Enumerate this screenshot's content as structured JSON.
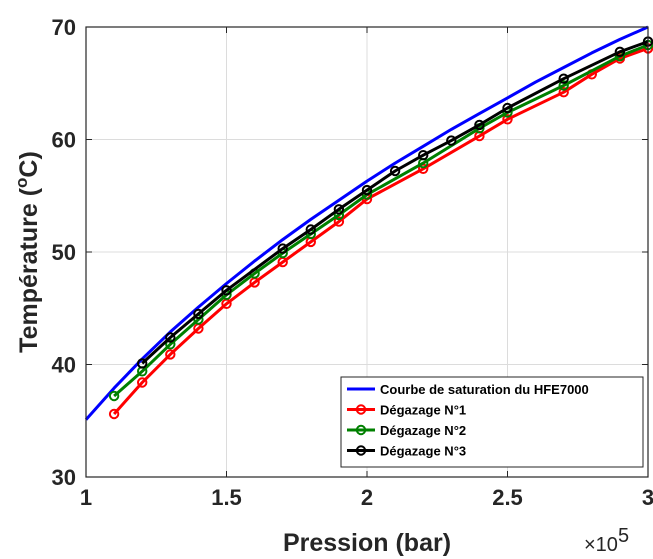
{
  "chart_data": {
    "type": "line",
    "xlabel": "Pression (bar)",
    "ylabel": "Température (°C)",
    "ylabel_parts": {
      "prefix": "Température (",
      "superscript": "o",
      "suffix": "C)"
    },
    "x_multiplier": {
      "base": "×10",
      "exponent": "5"
    },
    "xlim": [
      1,
      3
    ],
    "ylim": [
      30,
      70
    ],
    "x_ticks": [
      1,
      1.5,
      2,
      2.5,
      3
    ],
    "x_tick_labels": [
      "1",
      "1.5",
      "2",
      "2.5",
      "3"
    ],
    "y_ticks": [
      30,
      40,
      50,
      60,
      70
    ],
    "y_tick_labels": [
      "30",
      "40",
      "50",
      "60",
      "70"
    ],
    "grid": true,
    "legend_position": "bottom-right",
    "series": [
      {
        "name": "Courbe de saturation du HFE7000",
        "color": "#0000ff",
        "marker": "none",
        "x": [
          1.0,
          1.1,
          1.2,
          1.3,
          1.4,
          1.5,
          1.6,
          1.7,
          1.8,
          1.9,
          2.0,
          2.1,
          2.2,
          2.3,
          2.4,
          2.5,
          2.6,
          2.7,
          2.8,
          2.9,
          3.0
        ],
        "y": [
          35.1,
          37.9,
          40.5,
          42.9,
          45.1,
          47.2,
          49.2,
          51.1,
          52.9,
          54.6,
          56.3,
          57.9,
          59.4,
          60.9,
          62.3,
          63.7,
          65.1,
          66.4,
          67.7,
          68.9,
          70.0
        ]
      },
      {
        "name": "Dégazage N°1",
        "color": "#ff0000",
        "marker": "circle",
        "x": [
          1.1,
          1.2,
          1.3,
          1.4,
          1.5,
          1.6,
          1.7,
          1.8,
          1.9,
          2.0,
          2.2,
          2.4,
          2.5,
          2.7,
          2.8,
          2.9,
          3.0
        ],
        "y": [
          35.6,
          38.4,
          40.9,
          43.2,
          45.4,
          47.3,
          49.1,
          50.9,
          52.7,
          54.7,
          57.4,
          60.3,
          61.8,
          64.2,
          65.8,
          67.2,
          68.1
        ]
      },
      {
        "name": "Dégazage N°2",
        "color": "#008000",
        "marker": "circle",
        "x": [
          1.1,
          1.2,
          1.3,
          1.4,
          1.5,
          1.6,
          1.7,
          1.8,
          1.9,
          2.0,
          2.2,
          2.4,
          2.5,
          2.7,
          2.9,
          3.0
        ],
        "y": [
          37.2,
          39.4,
          41.8,
          44.0,
          46.2,
          48.1,
          49.9,
          51.6,
          53.3,
          55.1,
          57.9,
          61.0,
          62.4,
          64.8,
          67.4,
          68.4
        ]
      },
      {
        "name": "Dégazage N°3",
        "color": "#000000",
        "marker": "circle",
        "x": [
          1.2,
          1.3,
          1.4,
          1.5,
          1.7,
          1.8,
          1.9,
          2.0,
          2.1,
          2.2,
          2.3,
          2.4,
          2.5,
          2.7,
          2.9,
          3.0
        ],
        "y": [
          40.1,
          42.4,
          44.5,
          46.6,
          50.3,
          52.0,
          53.8,
          55.5,
          57.2,
          58.6,
          59.9,
          61.3,
          62.8,
          65.4,
          67.8,
          68.7
        ]
      }
    ]
  }
}
